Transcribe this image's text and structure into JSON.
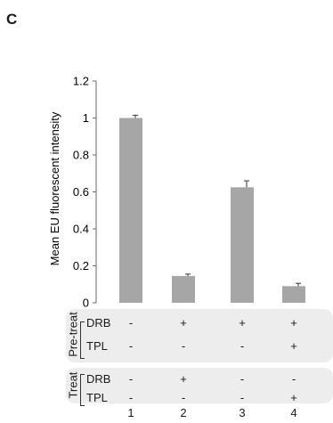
{
  "panel_label": "C",
  "chart_data": {
    "type": "bar",
    "ylabel": "Mean EU fluorescent intensity",
    "ylim": [
      0,
      1.2
    ],
    "yticks": [
      "0",
      "0.2",
      "0.4",
      "0.6",
      "0.8",
      "1",
      "1.2"
    ],
    "categories": [
      "1",
      "2",
      "3",
      "4"
    ],
    "values": [
      1.0,
      0.145,
      0.625,
      0.09
    ],
    "errors": [
      0.015,
      0.01,
      0.035,
      0.015
    ],
    "bar_color": "#a6a6a6",
    "grid": false
  },
  "conditions": {
    "pretreat": {
      "title": "Pre-treat",
      "rows": [
        {
          "label": "DRB",
          "marks": [
            "-",
            "+",
            "+",
            "+"
          ]
        },
        {
          "label": "TPL",
          "marks": [
            "-",
            "-",
            "-",
            "+"
          ]
        }
      ]
    },
    "treat": {
      "title": "Treat",
      "rows": [
        {
          "label": "DRB",
          "marks": [
            "-",
            "+",
            "-",
            "-"
          ]
        },
        {
          "label": "TPL",
          "marks": [
            "-",
            "-",
            "-",
            "+"
          ]
        }
      ]
    }
  }
}
